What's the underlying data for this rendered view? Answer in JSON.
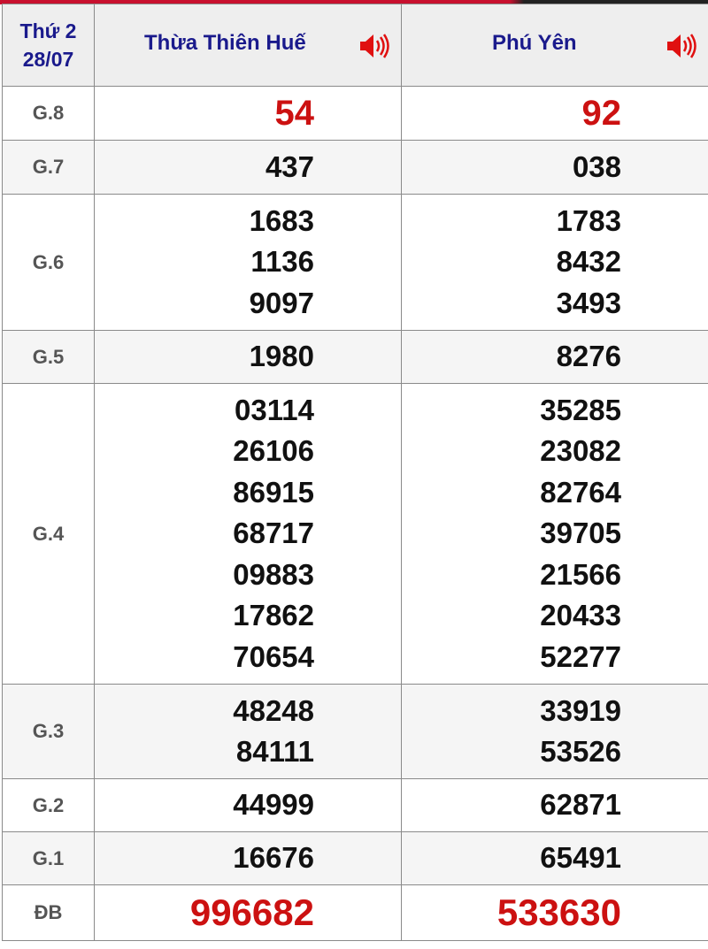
{
  "header": {
    "day": "Thứ 2",
    "date": "28/07",
    "provinces": [
      {
        "name": "Thừa Thiên Huế",
        "icon": "speaker-icon"
      },
      {
        "name": "Phú Yên",
        "icon": "speaker-icon"
      }
    ]
  },
  "colors": {
    "accent": "#cc1111",
    "header_text": "#1a1a8c"
  },
  "rows": [
    {
      "label": "G.8",
      "values": [
        [
          "54"
        ],
        [
          "92"
        ]
      ]
    },
    {
      "label": "G.7",
      "values": [
        [
          "437"
        ],
        [
          "038"
        ]
      ]
    },
    {
      "label": "G.6",
      "values": [
        [
          "1683",
          "1136",
          "9097"
        ],
        [
          "1783",
          "8432",
          "3493"
        ]
      ]
    },
    {
      "label": "G.5",
      "values": [
        [
          "1980"
        ],
        [
          "8276"
        ]
      ]
    },
    {
      "label": "G.4",
      "values": [
        [
          "03114",
          "26106",
          "86915",
          "68717",
          "09883",
          "17862",
          "70654"
        ],
        [
          "35285",
          "23082",
          "82764",
          "39705",
          "21566",
          "20433",
          "52277"
        ]
      ]
    },
    {
      "label": "G.3",
      "values": [
        [
          "48248",
          "84111"
        ],
        [
          "33919",
          "53526"
        ]
      ]
    },
    {
      "label": "G.2",
      "values": [
        [
          "44999"
        ],
        [
          "62871"
        ]
      ]
    },
    {
      "label": "G.1",
      "values": [
        [
          "16676"
        ],
        [
          "65491"
        ]
      ]
    },
    {
      "label": "ĐB",
      "values": [
        [
          "996682"
        ],
        [
          "533630"
        ]
      ]
    }
  ]
}
